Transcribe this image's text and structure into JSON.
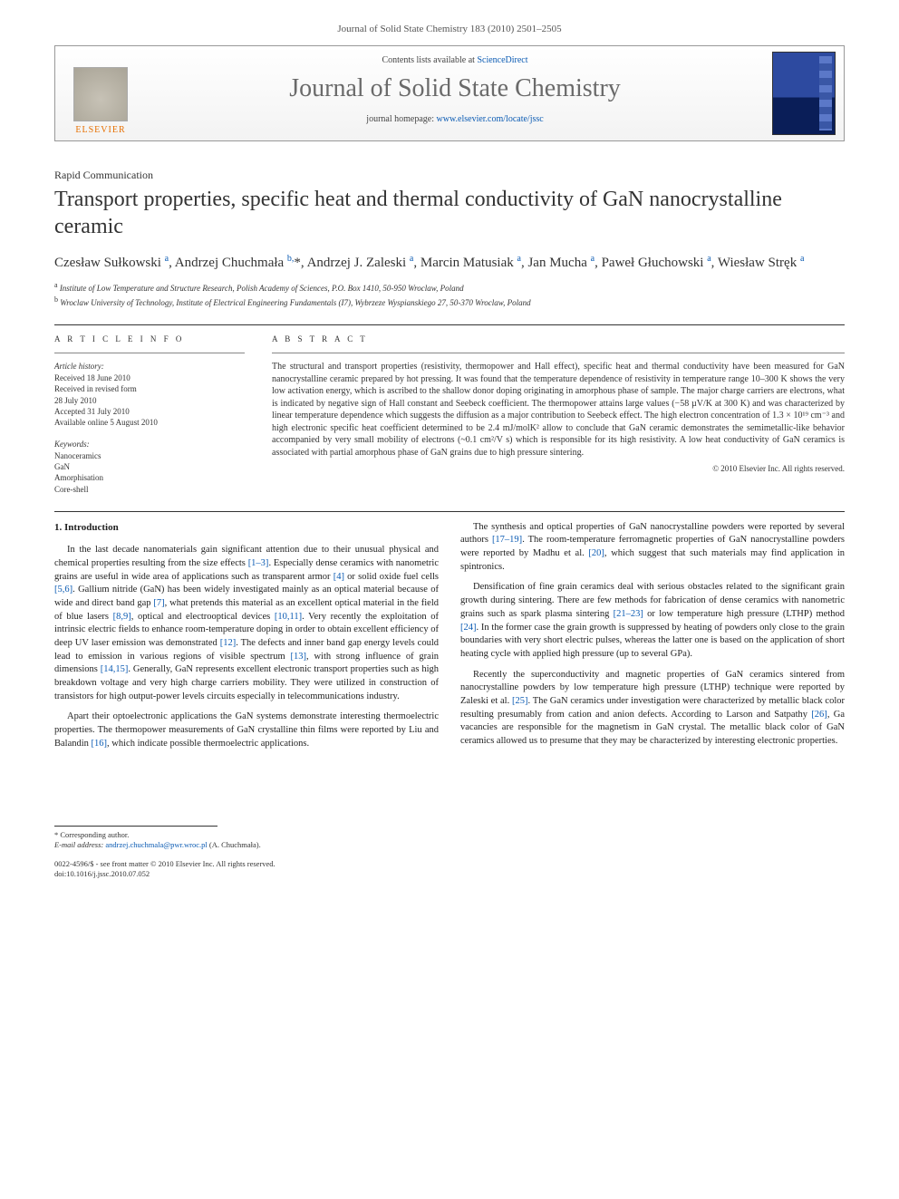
{
  "running_head": "Journal of Solid State Chemistry 183 (2010) 2501–2505",
  "masthead": {
    "publisher": "ELSEVIER",
    "contents_prefix": "Contents lists available at ",
    "contents_link": "ScienceDirect",
    "journal_title": "Journal of Solid State Chemistry",
    "homepage_prefix": "journal homepage: ",
    "homepage_link": "www.elsevier.com/locate/jssc"
  },
  "article": {
    "type": "Rapid Communication",
    "title": "Transport properties, specific heat and thermal conductivity of GaN nanocrystalline ceramic",
    "authors_html": "Czesław Sułkowski <sup>a</sup>, Andrzej Chuchmała <sup>b,</sup><span class='star'>*</span>, Andrzej J. Zaleski <sup>a</sup>, Marcin Matusiak <sup>a</sup>, Jan Mucha <sup>a</sup>, Paweł Głuchowski <sup>a</sup>, Wiesław Stręk <sup>a</sup>",
    "affiliations": {
      "a": "Institute of Low Temperature and Structure Research, Polish Academy of Sciences, P.O. Box 1410, 50-950 Wroclaw, Poland",
      "b": "Wroclaw University of Technology, Institute of Electrical Engineering Fundamentals (I7), Wybrzeze Wyspianskiego 27, 50-370 Wroclaw, Poland"
    },
    "info_heading": "A R T I C L E   I N F O",
    "abstract_heading": "A B S T R A C T",
    "history_heading": "Article history:",
    "history": "Received 18 June 2010\nReceived in revised form\n28 July 2010\nAccepted 31 July 2010\nAvailable online 5 August 2010",
    "keywords_heading": "Keywords:",
    "keywords": "Nanoceramics\nGaN\nAmorphisation\nCore-shell",
    "abstract": "The structural and transport properties (resistivity, thermopower and Hall effect), specific heat and thermal conductivity have been measured for GaN nanocrystalline ceramic prepared by hot pressing. It was found that the temperature dependence of resistivity in temperature range 10–300 K shows the very low activation energy, which is ascribed to the shallow donor doping originating in amorphous phase of sample. The major charge carriers are electrons, what is indicated by negative sign of Hall constant and Seebeck coefficient. The thermopower attains large values (−58 µV/K at 300 K) and was characterized by linear temperature dependence which suggests the diffusion as a major contribution to Seebeck effect. The high electron concentration of 1.3 × 10¹⁹ cm⁻³ and high electronic specific heat coefficient determined to be 2.4 mJ/molK² allow to conclude that GaN ceramic demonstrates the semimetallic-like behavior accompanied by very small mobility of electrons (~0.1 cm²/V s) which is responsible for its high resistivity. A low heat conductivity of GaN ceramics is associated with partial amorphous phase of GaN grains due to high pressure sintering.",
    "copyright": "© 2010 Elsevier Inc. All rights reserved."
  },
  "body": {
    "section_number": "1.",
    "section_title": "Introduction",
    "p1": "In the last decade nanomaterials gain significant attention due to their unusual physical and chemical properties resulting from the size effects [1–3]. Especially dense ceramics with nanometric grains are useful in wide area of applications such as transparent armor [4] or solid oxide fuel cells [5,6]. Gallium nitride (GaN) has been widely investigated mainly as an optical material because of wide and direct band gap [7], what pretends this material as an excellent optical material in the field of blue lasers [8,9], optical and electrooptical devices [10,11]. Very recently the exploitation of intrinsic electric fields to enhance room-temperature doping in order to obtain excellent efficiency of deep UV laser emission was demonstrated [12]. The defects and inner band gap energy levels could lead to emission in various regions of visible spectrum [13], with strong influence of grain dimensions [14,15]. Generally, GaN represents excellent electronic transport properties such as high breakdown voltage and very high charge carriers mobility. They were utilized in construction of transistors for high output-power levels circuits especially in telecommunications industry.",
    "p2": "Apart their optoelectronic applications the GaN systems demonstrate interesting thermoelectric properties. The thermopower measurements of GaN crystalline thin films were reported by Liu and Balandin [16], which indicate possible thermoelectric applications.",
    "p3": "The synthesis and optical properties of GaN nanocrystalline powders were reported by several authors [17–19]. The room-temperature ferromagnetic properties of GaN nanocrystalline powders were reported by Madhu et al. [20], which suggest that such materials may find application in spintronics.",
    "p4": "Densification of fine grain ceramics deal with serious obstacles related to the significant grain growth during sintering. There are few methods for fabrication of dense ceramics with nanometric grains such as spark plasma sintering [21–23] or low temperature high pressure (LTHP) method [24]. In the former case the grain growth is suppressed by heating of powders only close to the grain boundaries with very short electric pulses, whereas the latter one is based on the application of short heating cycle with applied high pressure (up to several GPa).",
    "p5": "Recently the superconductivity and magnetic properties of GaN ceramics sintered from nanocrystalline powders by low temperature high pressure (LTHP) technique were reported by Zaleski et al. [25]. The GaN ceramics under investigation were characterized by metallic black color resulting presumably from cation and anion defects. According to Larson and Satpathy [26], Ga vacancies are responsible for the magnetism in GaN crystal. The metallic black color of GaN ceramics allowed us to presume that they may be characterized by interesting electronic properties."
  },
  "footer": {
    "corr_label": "* Corresponding author.",
    "email_label": "E-mail address:",
    "email": "andrzej.chuchmala@pwr.wroc.pl",
    "email_person": "(A. Chuchmała).",
    "issn": "0022-4596/$ - see front matter © 2010 Elsevier Inc. All rights reserved.",
    "doi": "doi:10.1016/j.jssc.2010.07.052"
  },
  "colors": {
    "link": "#0b5bb3",
    "elsevier_orange": "#e76f00",
    "text": "#333333"
  }
}
